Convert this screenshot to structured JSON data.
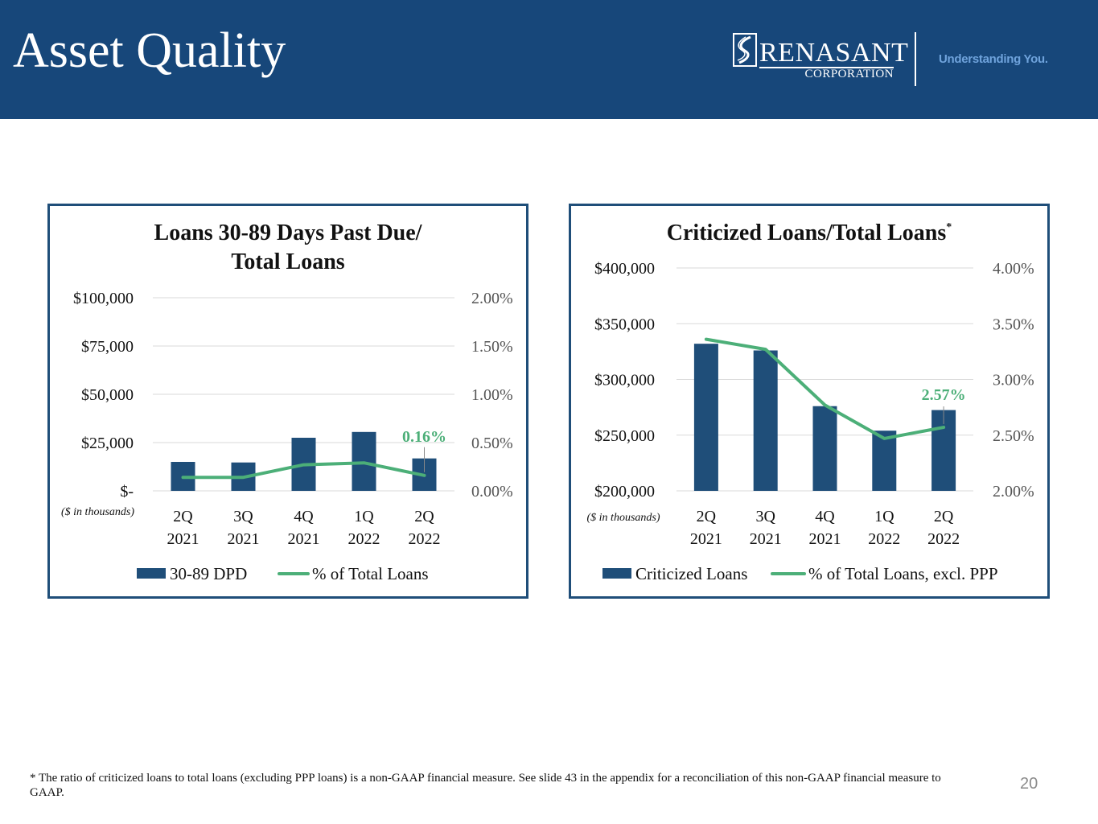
{
  "slide": {
    "title": "Asset Quality",
    "page_number": "20",
    "footnote": "* The ratio of criticized loans to total loans (excluding PPP loans) is a non-GAAP financial measure. See slide 43 in the appendix for a reconciliation of this non-GAAP financial measure to GAAP."
  },
  "logo": {
    "name": "RENASANT",
    "sub": "CORPORATION",
    "tagline": "Understanding You."
  },
  "colors": {
    "header": "#17477a",
    "bar": "#1f4e79",
    "line": "#4caf78",
    "grid": "#d9d9d9",
    "label": "#4caf78",
    "text": "#111111",
    "axis_pct": "#555555"
  },
  "chart_data": [
    {
      "type": "bar",
      "title_lines": [
        "Loans 30-89 Days Past Due/",
        "Total Loans"
      ],
      "title_marker": "",
      "unit_note": "($ in thousands)",
      "categories": [
        [
          "2Q",
          "2021"
        ],
        [
          "3Q",
          "2021"
        ],
        [
          "4Q",
          "2021"
        ],
        [
          "1Q",
          "2022"
        ],
        [
          "2Q",
          "2022"
        ]
      ],
      "series": [
        {
          "name": "30-89 DPD",
          "type": "bar",
          "axis": "left",
          "values": [
            15000,
            14700,
            27500,
            30500,
            16800
          ]
        },
        {
          "name": "% of Total Loans",
          "type": "line",
          "axis": "right",
          "values": [
            0.14,
            0.14,
            0.27,
            0.29,
            0.16
          ]
        }
      ],
      "y_left": {
        "min": 0,
        "max": 100000,
        "tick_labels": [
          "$-",
          "$25,000",
          "$50,000",
          "$75,000",
          "$100,000"
        ]
      },
      "y_right": {
        "min": 0,
        "max": 2.0,
        "tick_labels": [
          "0.00%",
          "0.50%",
          "1.00%",
          "1.50%",
          "2.00%"
        ]
      },
      "data_label": {
        "index": 4,
        "text": "0.16%"
      },
      "legend": [
        {
          "label": "30-89 DPD",
          "kind": "bar"
        },
        {
          "label": "% of Total Loans",
          "kind": "line"
        }
      ],
      "legend_position": "bottom",
      "grid": true
    },
    {
      "type": "bar",
      "title_lines": [
        "Criticized Loans/Total Loans"
      ],
      "title_marker": "*",
      "unit_note": "($ in thousands)",
      "categories": [
        [
          "2Q",
          "2021"
        ],
        [
          "3Q",
          "2021"
        ],
        [
          "4Q",
          "2021"
        ],
        [
          "1Q",
          "2022"
        ],
        [
          "2Q",
          "2022"
        ]
      ],
      "series": [
        {
          "name": "Criticized Loans",
          "type": "bar",
          "axis": "left",
          "values": [
            332000,
            326000,
            276000,
            254000,
            272500
          ]
        },
        {
          "name": "% of Total Loans, excl. PPP",
          "type": "line",
          "axis": "right",
          "values": [
            3.36,
            3.27,
            2.77,
            2.47,
            2.57
          ]
        }
      ],
      "y_left": {
        "min": 200000,
        "max": 400000,
        "tick_labels": [
          "$200,000",
          "$250,000",
          "$300,000",
          "$350,000",
          "$400,000"
        ]
      },
      "y_right": {
        "min": 2.0,
        "max": 4.0,
        "tick_labels": [
          "2.00%",
          "2.50%",
          "3.00%",
          "3.50%",
          "4.00%"
        ]
      },
      "data_label": {
        "index": 4,
        "text": "2.57%"
      },
      "legend": [
        {
          "label": "Criticized Loans",
          "kind": "bar"
        },
        {
          "label": "% of Total Loans, excl. PPP",
          "kind": "line"
        }
      ],
      "legend_position": "bottom",
      "grid": true
    }
  ]
}
